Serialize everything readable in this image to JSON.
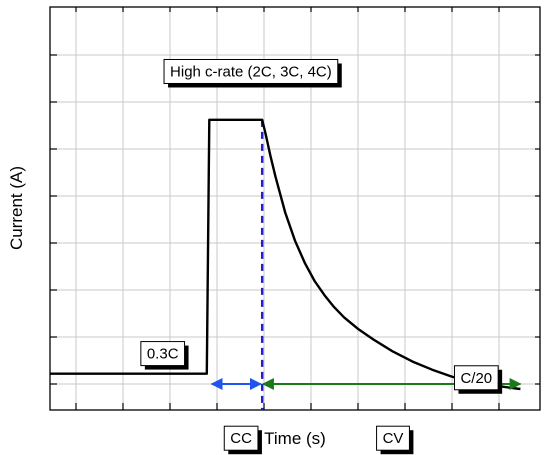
{
  "chart_data": {
    "type": "line",
    "title": "",
    "xlabel": "Time (s)",
    "ylabel": "Current (A)",
    "xlim": [
      0,
      100
    ],
    "ylim": [
      0,
      100
    ],
    "grid": true,
    "tick_labels_shown": false,
    "series": [
      {
        "x": [
          0,
          32,
          32.5,
          43,
          43.3,
          44,
          45,
          46,
          47,
          48,
          50,
          52,
          54,
          56,
          58,
          60,
          63,
          66,
          70,
          74,
          78,
          82,
          86,
          90,
          94,
          96
        ],
        "y": [
          9,
          9,
          72,
          72,
          72,
          68.5,
          63,
          58,
          53.5,
          49,
          42,
          36.5,
          32,
          28.5,
          25.5,
          23,
          20,
          17.5,
          14.5,
          12,
          10,
          8.3,
          7,
          6.2,
          5.5,
          5.2
        ],
        "color": "#000000"
      }
    ],
    "annotations": [
      {
        "text": "High c-rate (2C, 3C, 4C)",
        "x": 41,
        "y": 84
      },
      {
        "text": "0.3C",
        "x": 23,
        "y": 14
      },
      {
        "text": "C/20",
        "x": 87,
        "y": 8
      },
      {
        "text": "CC",
        "x": 39,
        "y": -7
      },
      {
        "text": "CV",
        "x": 70,
        "y": -7
      }
    ],
    "markers": {
      "cc_cv_boundary_x": 43.3,
      "boundary_color": "#1f1fcc",
      "cc_arrow": {
        "x_start": 33,
        "x_end": 43,
        "color": "#1f55ee"
      },
      "cv_arrow": {
        "x_start": 43.5,
        "x_end": 96,
        "color": "#1a7a1a"
      }
    }
  }
}
